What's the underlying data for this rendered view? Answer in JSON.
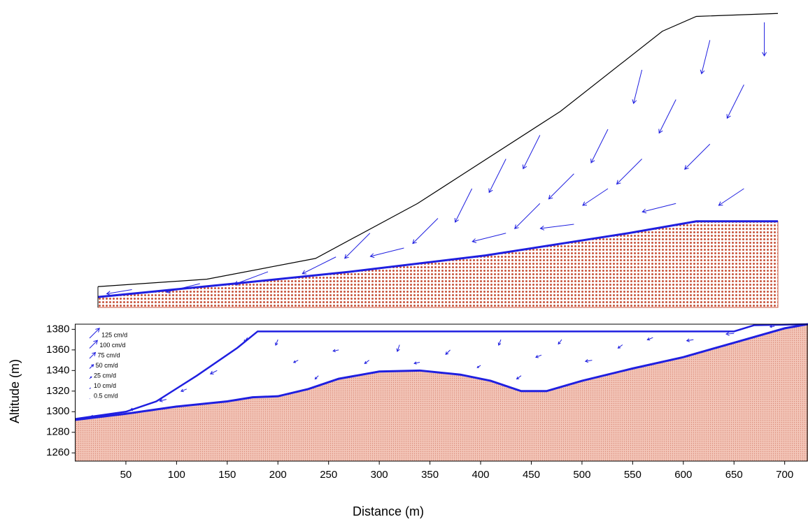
{
  "chart_data": [
    {
      "type": "vector-field",
      "surface": {
        "x": [
          0,
          16,
          32,
          47,
          68,
          83,
          88,
          100
        ],
        "y": [
          7,
          9.5,
          16.5,
          35,
          66,
          93,
          98,
          99
        ]
      },
      "bed": {
        "x": [
          0,
          20,
          37,
          57,
          78,
          88,
          100
        ],
        "y": [
          3.5,
          8,
          12,
          17.5,
          25,
          29,
          29
        ]
      },
      "xlim": [
        0,
        100
      ],
      "ylim": [
        0,
        100
      ],
      "vectors": {
        "color": "#1f1fe0",
        "x": [
          5,
          15,
          25,
          35,
          40,
          45,
          50,
          55,
          60,
          60,
          65,
          65,
          70,
          70,
          75,
          75,
          80,
          80,
          85,
          85,
          90,
          90,
          95,
          95,
          98
        ],
        "y": [
          6,
          8,
          12,
          17,
          25,
          20,
          30,
          40,
          25,
          50,
          35,
          58,
          45,
          28,
          60,
          40,
          80,
          50,
          35,
          70,
          90,
          55,
          40,
          75,
          96
        ],
        "u": [
          -3,
          -4,
          -4,
          -4,
          -3,
          -4,
          -3,
          -2,
          -4,
          -2,
          -3,
          -2,
          -3,
          -4,
          -2,
          -3,
          -1,
          -3,
          -4,
          -2,
          -1,
          -3,
          -3,
          -2,
          0
        ],
        "v": [
          -0.5,
          -1,
          -1.5,
          -2,
          -3,
          -1,
          -3,
          -4,
          -1,
          -4,
          -3,
          -4,
          -3,
          -0.5,
          -4,
          -2,
          -4,
          -3,
          -1,
          -4,
          -4,
          -3,
          -2,
          -4,
          -4
        ]
      },
      "bed_color": "#c8553d"
    },
    {
      "type": "vector-field",
      "xlabel": "Distance (m)",
      "ylabel": "Altitude (m)",
      "xlim": [
        0,
        723
      ],
      "ylim": [
        1252,
        1385
      ],
      "xticks": [
        50,
        100,
        150,
        200,
        250,
        300,
        350,
        400,
        450,
        500,
        550,
        600,
        650,
        700
      ],
      "yticks": [
        1260,
        1280,
        1300,
        1320,
        1340,
        1360,
        1380
      ],
      "surface": {
        "x": [
          0,
          50,
          80,
          120,
          160,
          180,
          650,
          670,
          723
        ],
        "y": [
          1293,
          1300,
          1310,
          1335,
          1362,
          1378,
          1378,
          1384,
          1385
        ]
      },
      "bed": {
        "x": [
          0,
          50,
          100,
          150,
          175,
          200,
          230,
          260,
          300,
          340,
          380,
          410,
          440,
          465,
          500,
          550,
          600,
          650,
          700,
          723
        ],
        "y": [
          1292,
          1298,
          1305,
          1310,
          1314,
          1315,
          1322,
          1332,
          1339,
          1340,
          1336,
          1330,
          1320,
          1320,
          1330,
          1342,
          1353,
          1367,
          1381,
          1385
        ]
      },
      "vectors": {
        "color": "#1f1fe0",
        "x": [
          20,
          60,
          90,
          110,
          140,
          170,
          200,
          220,
          240,
          260,
          290,
          320,
          340,
          370,
          400,
          420,
          440,
          460,
          480,
          510,
          540,
          570,
          610,
          650,
          690
        ],
        "y": [
          1296,
          1303,
          1312,
          1322,
          1340,
          1372,
          1370,
          1350,
          1335,
          1360,
          1350,
          1365,
          1348,
          1360,
          1345,
          1370,
          1335,
          1355,
          1370,
          1350,
          1365,
          1372,
          1370,
          1376,
          1383
        ],
        "u": [
          -40,
          -50,
          -60,
          -50,
          -60,
          -30,
          -20,
          -40,
          -30,
          -50,
          -40,
          -20,
          -50,
          -40,
          -30,
          -20,
          -40,
          -50,
          -30,
          -60,
          -40,
          -50,
          -60,
          -70,
          -40
        ],
        "v": [
          -5,
          -10,
          -15,
          -20,
          -30,
          -40,
          -50,
          -20,
          -30,
          -10,
          -30,
          -60,
          -10,
          -40,
          -20,
          -50,
          -30,
          -20,
          -40,
          -10,
          -30,
          -20,
          -10,
          -5,
          -5
        ]
      },
      "legend": [
        {
          "label": "125 cm/d",
          "value": 125
        },
        {
          "label": "100 cm/d",
          "value": 100
        },
        {
          "label": "75 cm/d",
          "value": 75
        },
        {
          "label": "50 cm/d",
          "value": 50
        },
        {
          "label": "25 cm/d",
          "value": 25
        },
        {
          "label": "10 cm/d",
          "value": 10
        },
        {
          "label": "0.5 cm/d",
          "value": 0.5
        }
      ],
      "bed_color": "#eab3a3"
    }
  ]
}
